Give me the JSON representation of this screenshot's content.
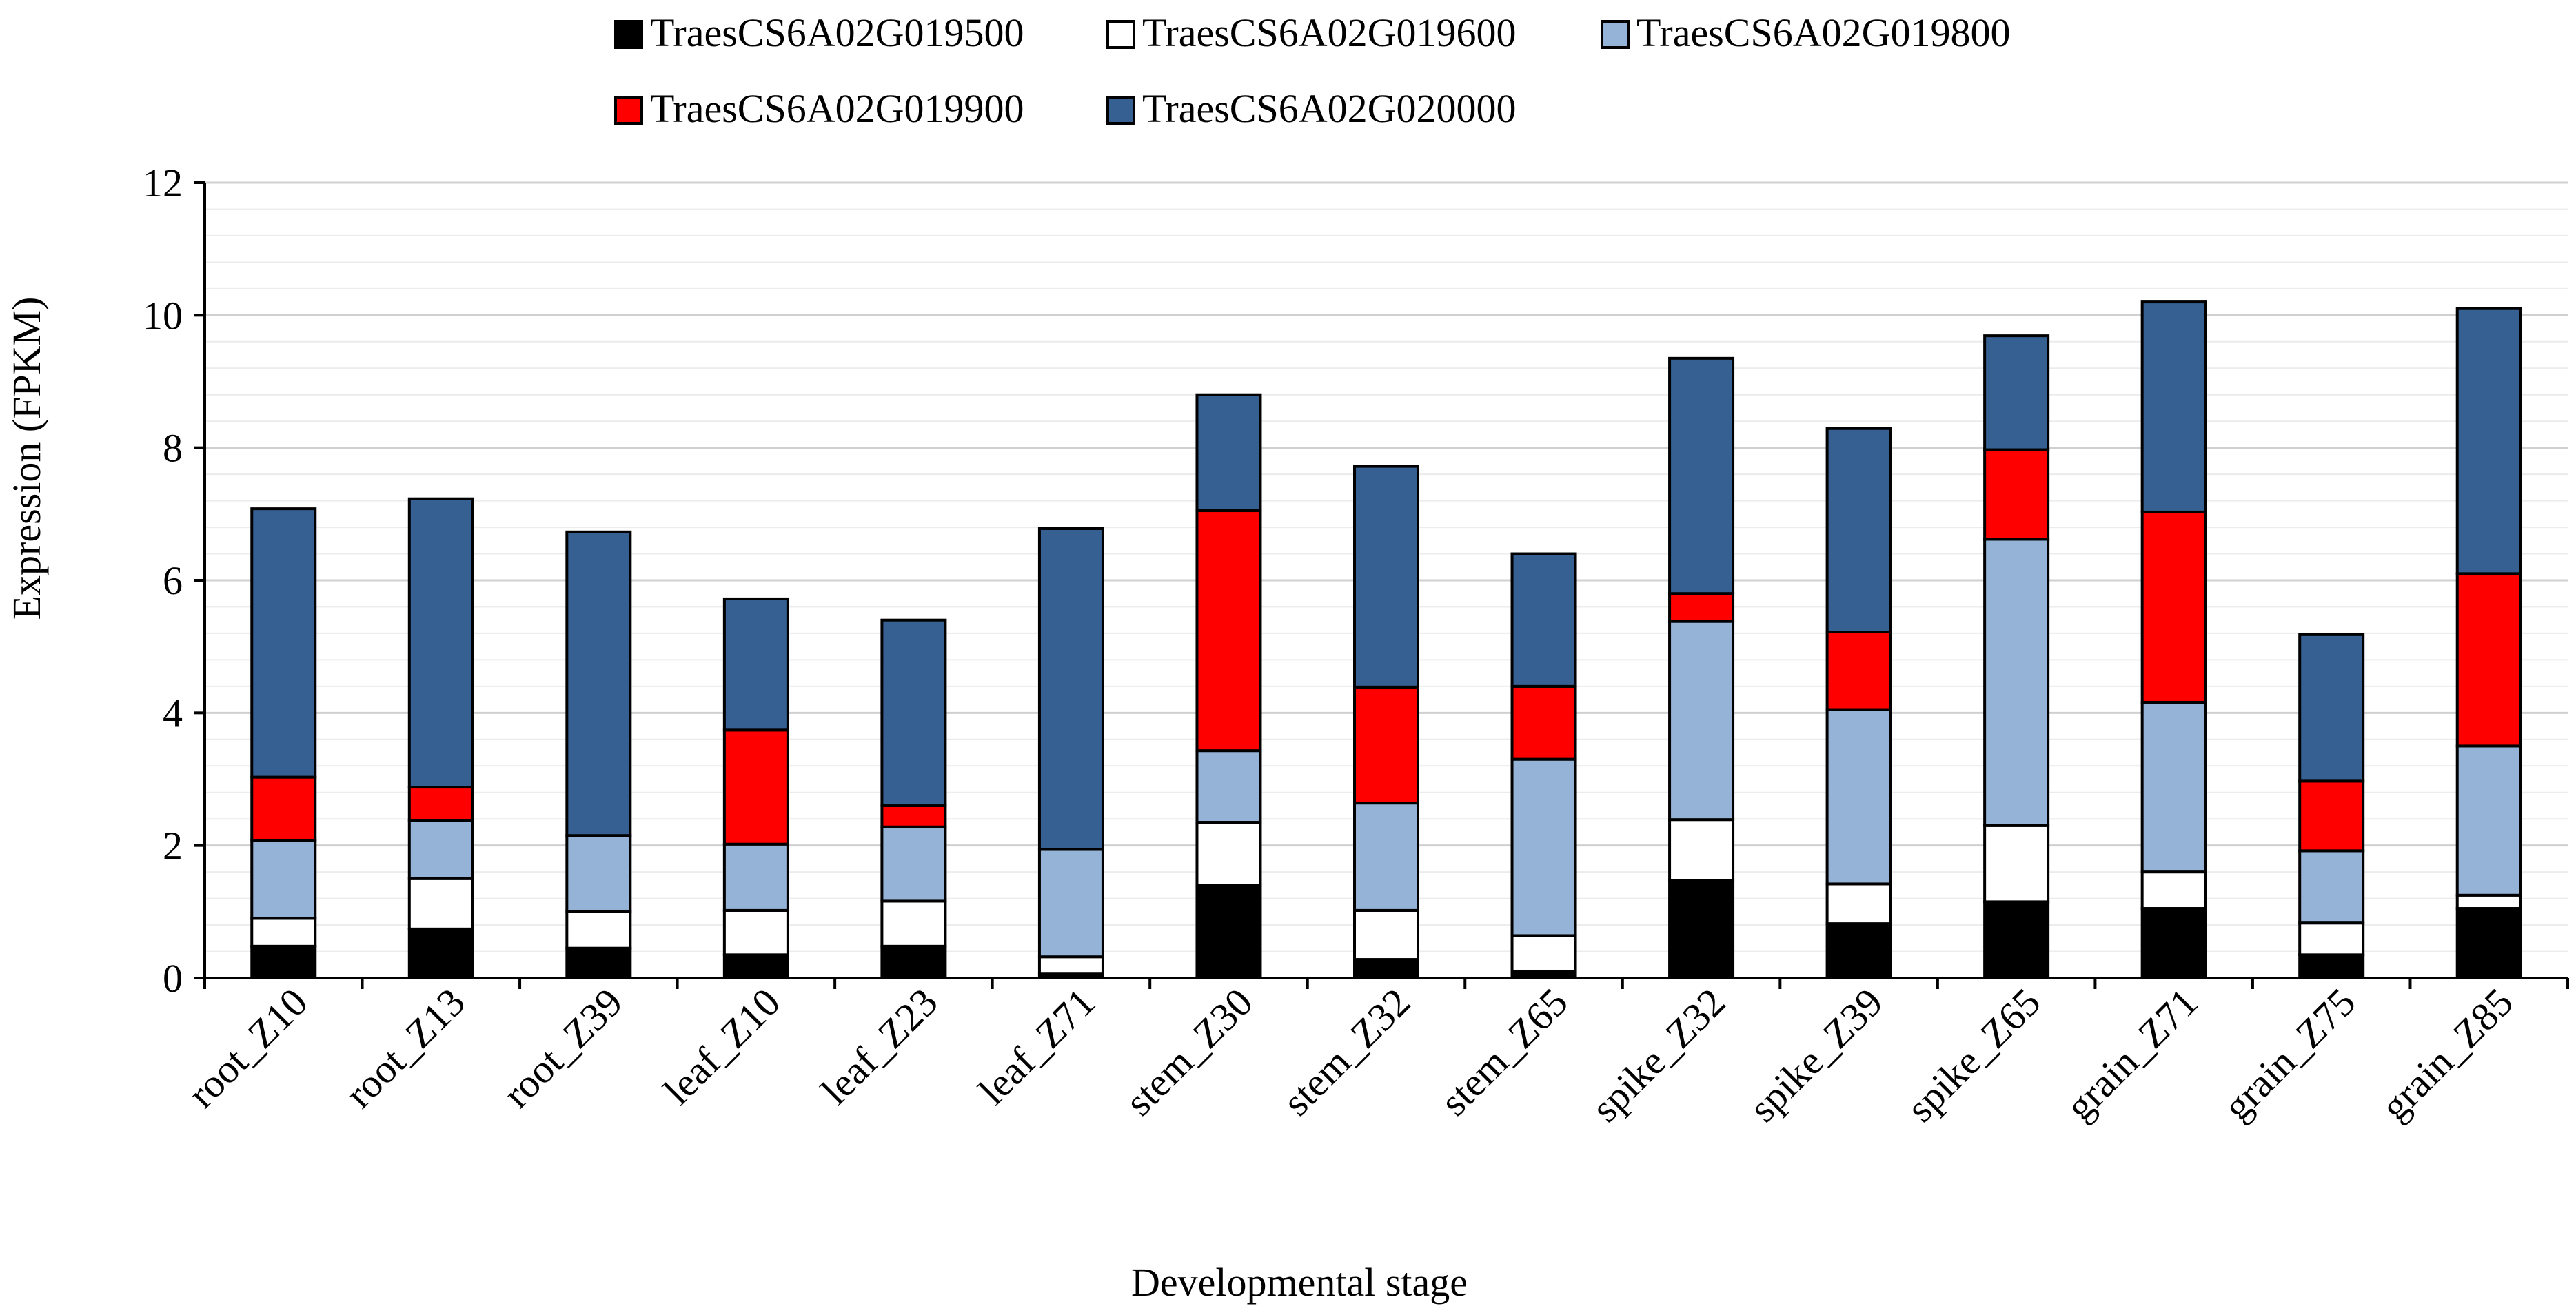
{
  "chart_data": {
    "type": "bar",
    "stacked": true,
    "title": "",
    "xlabel": "Developmental stage",
    "ylabel": "Expression (FPKM)",
    "ylim": [
      0,
      12
    ],
    "y_major_ticks": [
      0,
      2,
      4,
      6,
      8,
      10,
      12
    ],
    "y_tick_labels": [
      "0",
      "2",
      "4",
      "6",
      "8",
      "10",
      "12"
    ],
    "y_minor_step": 0.4,
    "grid": true,
    "legend_position": "top",
    "categories": [
      "root_Z10",
      "root_Z13",
      "root_Z39",
      "leaf_Z10",
      "leaf_Z23",
      "leaf_Z71",
      "stem_Z30",
      "stem_Z32",
      "stem_Z65",
      "spike_Z32",
      "spike_Z39",
      "spike_Z65",
      "grain_Z71",
      "grain_Z75",
      "grain_Z85"
    ],
    "series": [
      {
        "name": "TraesCS6A02G019500",
        "color": "#000000",
        "values": [
          0.48,
          0.74,
          0.45,
          0.35,
          0.48,
          0.06,
          1.4,
          0.28,
          0.1,
          1.47,
          0.82,
          1.15,
          1.05,
          0.35,
          1.05
        ]
      },
      {
        "name": "TraesCS6A02G019600",
        "color": "#ffffff",
        "values": [
          0.42,
          0.76,
          0.55,
          0.67,
          0.68,
          0.26,
          0.95,
          0.74,
          0.54,
          0.92,
          0.6,
          1.15,
          0.55,
          0.48,
          0.2
        ]
      },
      {
        "name": "TraesCS6A02G019800",
        "color": "#95b3d7",
        "values": [
          1.18,
          0.88,
          1.15,
          1.0,
          1.12,
          1.62,
          1.08,
          1.62,
          2.66,
          2.99,
          2.63,
          4.32,
          2.56,
          1.09,
          2.25
        ]
      },
      {
        "name": "TraesCS6A02G019900",
        "color": "#ff0000",
        "values": [
          0.95,
          0.5,
          0.0,
          1.72,
          0.32,
          0.0,
          3.62,
          1.75,
          1.1,
          0.42,
          1.17,
          1.35,
          2.87,
          1.05,
          2.6
        ]
      },
      {
        "name": "TraesCS6A02G020000",
        "color": "#366092",
        "values": [
          4.05,
          4.35,
          4.58,
          1.98,
          2.8,
          4.84,
          1.75,
          3.33,
          2.0,
          3.55,
          3.07,
          1.72,
          3.17,
          2.21,
          4.0
        ]
      }
    ]
  }
}
